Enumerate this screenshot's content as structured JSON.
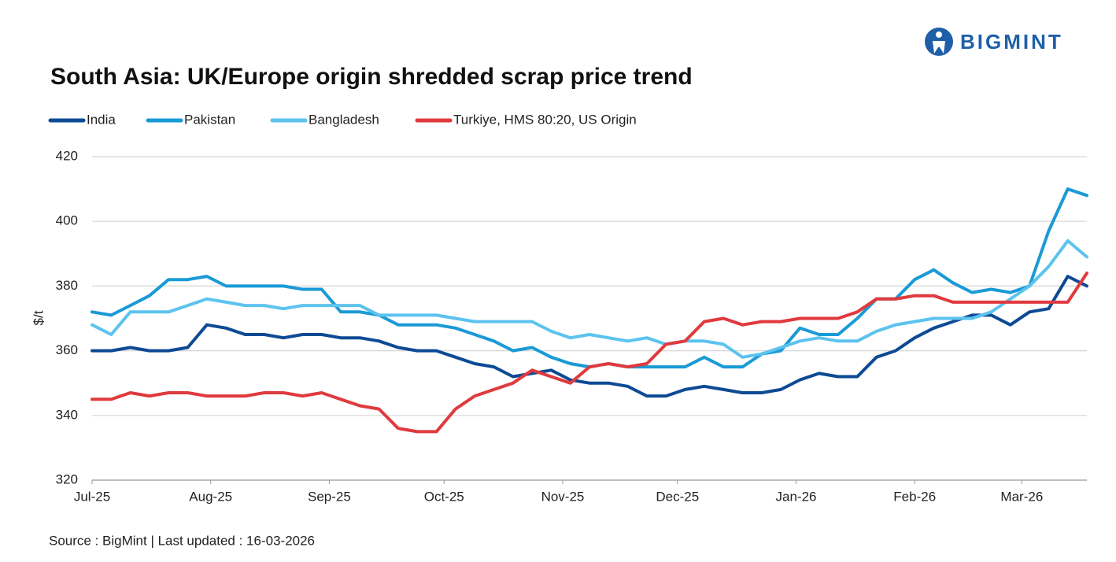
{
  "logo": "BIGMINT",
  "chart_data": {
    "type": "line",
    "title": "South Asia: UK/Europe origin shredded scrap price trend",
    "y_label": "$/t",
    "source": "Source : BigMint | Last updated : 16-03-2026",
    "x": [
      0,
      5,
      10,
      15,
      20,
      25,
      30,
      35,
      40,
      45,
      50,
      55,
      60,
      65,
      70,
      75,
      80,
      85,
      90,
      95,
      100,
      105,
      110,
      115,
      120,
      125,
      130,
      135,
      140,
      145,
      150,
      155,
      160,
      165,
      170,
      175,
      180,
      185,
      190,
      195,
      200,
      205,
      210,
      215,
      220,
      225,
      230,
      235,
      240,
      245,
      250,
      255,
      260
    ],
    "xlim": [
      0,
      260
    ],
    "xticks": [
      {
        "value": 0,
        "label": "Jul-25"
      },
      {
        "value": 31,
        "label": "Aug-25"
      },
      {
        "value": 62,
        "label": "Sep-25"
      },
      {
        "value": 92,
        "label": "Oct-25"
      },
      {
        "value": 123,
        "label": "Nov-25"
      },
      {
        "value": 153,
        "label": "Dec-25"
      },
      {
        "value": 184,
        "label": "Jan-26"
      },
      {
        "value": 215,
        "label": "Feb-26"
      },
      {
        "value": 243,
        "label": "Mar-26"
      }
    ],
    "ylim": [
      320,
      420
    ],
    "yticks": [
      320,
      340,
      360,
      380,
      400,
      420
    ],
    "grid": true,
    "legend": "top-left",
    "series": [
      {
        "name": "India",
        "color": "#0d4a94",
        "values": [
          360,
          360,
          361,
          360,
          360,
          361,
          368,
          367,
          365,
          365,
          364,
          365,
          365,
          364,
          364,
          363,
          361,
          360,
          360,
          358,
          356,
          355,
          352,
          353,
          354,
          351,
          350,
          350,
          349,
          346,
          346,
          348,
          349,
          348,
          347,
          347,
          348,
          351,
          353,
          352,
          352,
          358,
          360,
          364,
          367,
          369,
          371,
          371,
          368,
          372,
          373,
          383,
          380
        ]
      },
      {
        "name": "Pakistan",
        "color": "#1a9ad6",
        "values": [
          372,
          371,
          374,
          377,
          382,
          382,
          383,
          380,
          380,
          380,
          380,
          379,
          379,
          372,
          372,
          371,
          368,
          368,
          368,
          367,
          365,
          363,
          360,
          361,
          358,
          356,
          355,
          356,
          355,
          355,
          355,
          355,
          358,
          355,
          355,
          359,
          360,
          367,
          365,
          365,
          370,
          376,
          376,
          382,
          385,
          381,
          378,
          379,
          378,
          380,
          397,
          410,
          408
        ]
      },
      {
        "name": "Bangladesh",
        "color": "#5cc3ee",
        "values": [
          368,
          365,
          372,
          372,
          372,
          374,
          376,
          375,
          374,
          374,
          373,
          374,
          374,
          374,
          374,
          371,
          371,
          371,
          371,
          370,
          369,
          369,
          369,
          369,
          366,
          364,
          365,
          364,
          363,
          364,
          362,
          363,
          363,
          362,
          358,
          359,
          361,
          363,
          364,
          363,
          363,
          366,
          368,
          369,
          370,
          370,
          370,
          372,
          376,
          380,
          386,
          394,
          389
        ]
      },
      {
        "name": "Turkiye, HMS 80:20, US Origin",
        "color": "#e03a3e",
        "values": [
          345,
          345,
          347,
          346,
          347,
          347,
          346,
          346,
          346,
          347,
          347,
          346,
          347,
          345,
          343,
          342,
          336,
          335,
          335,
          342,
          346,
          348,
          350,
          354,
          352,
          350,
          355,
          356,
          355,
          356,
          362,
          363,
          369,
          370,
          368,
          369,
          369,
          370,
          370,
          370,
          372,
          376,
          376,
          377,
          377,
          375,
          375,
          375,
          375,
          375,
          375,
          375,
          384
        ]
      }
    ]
  }
}
